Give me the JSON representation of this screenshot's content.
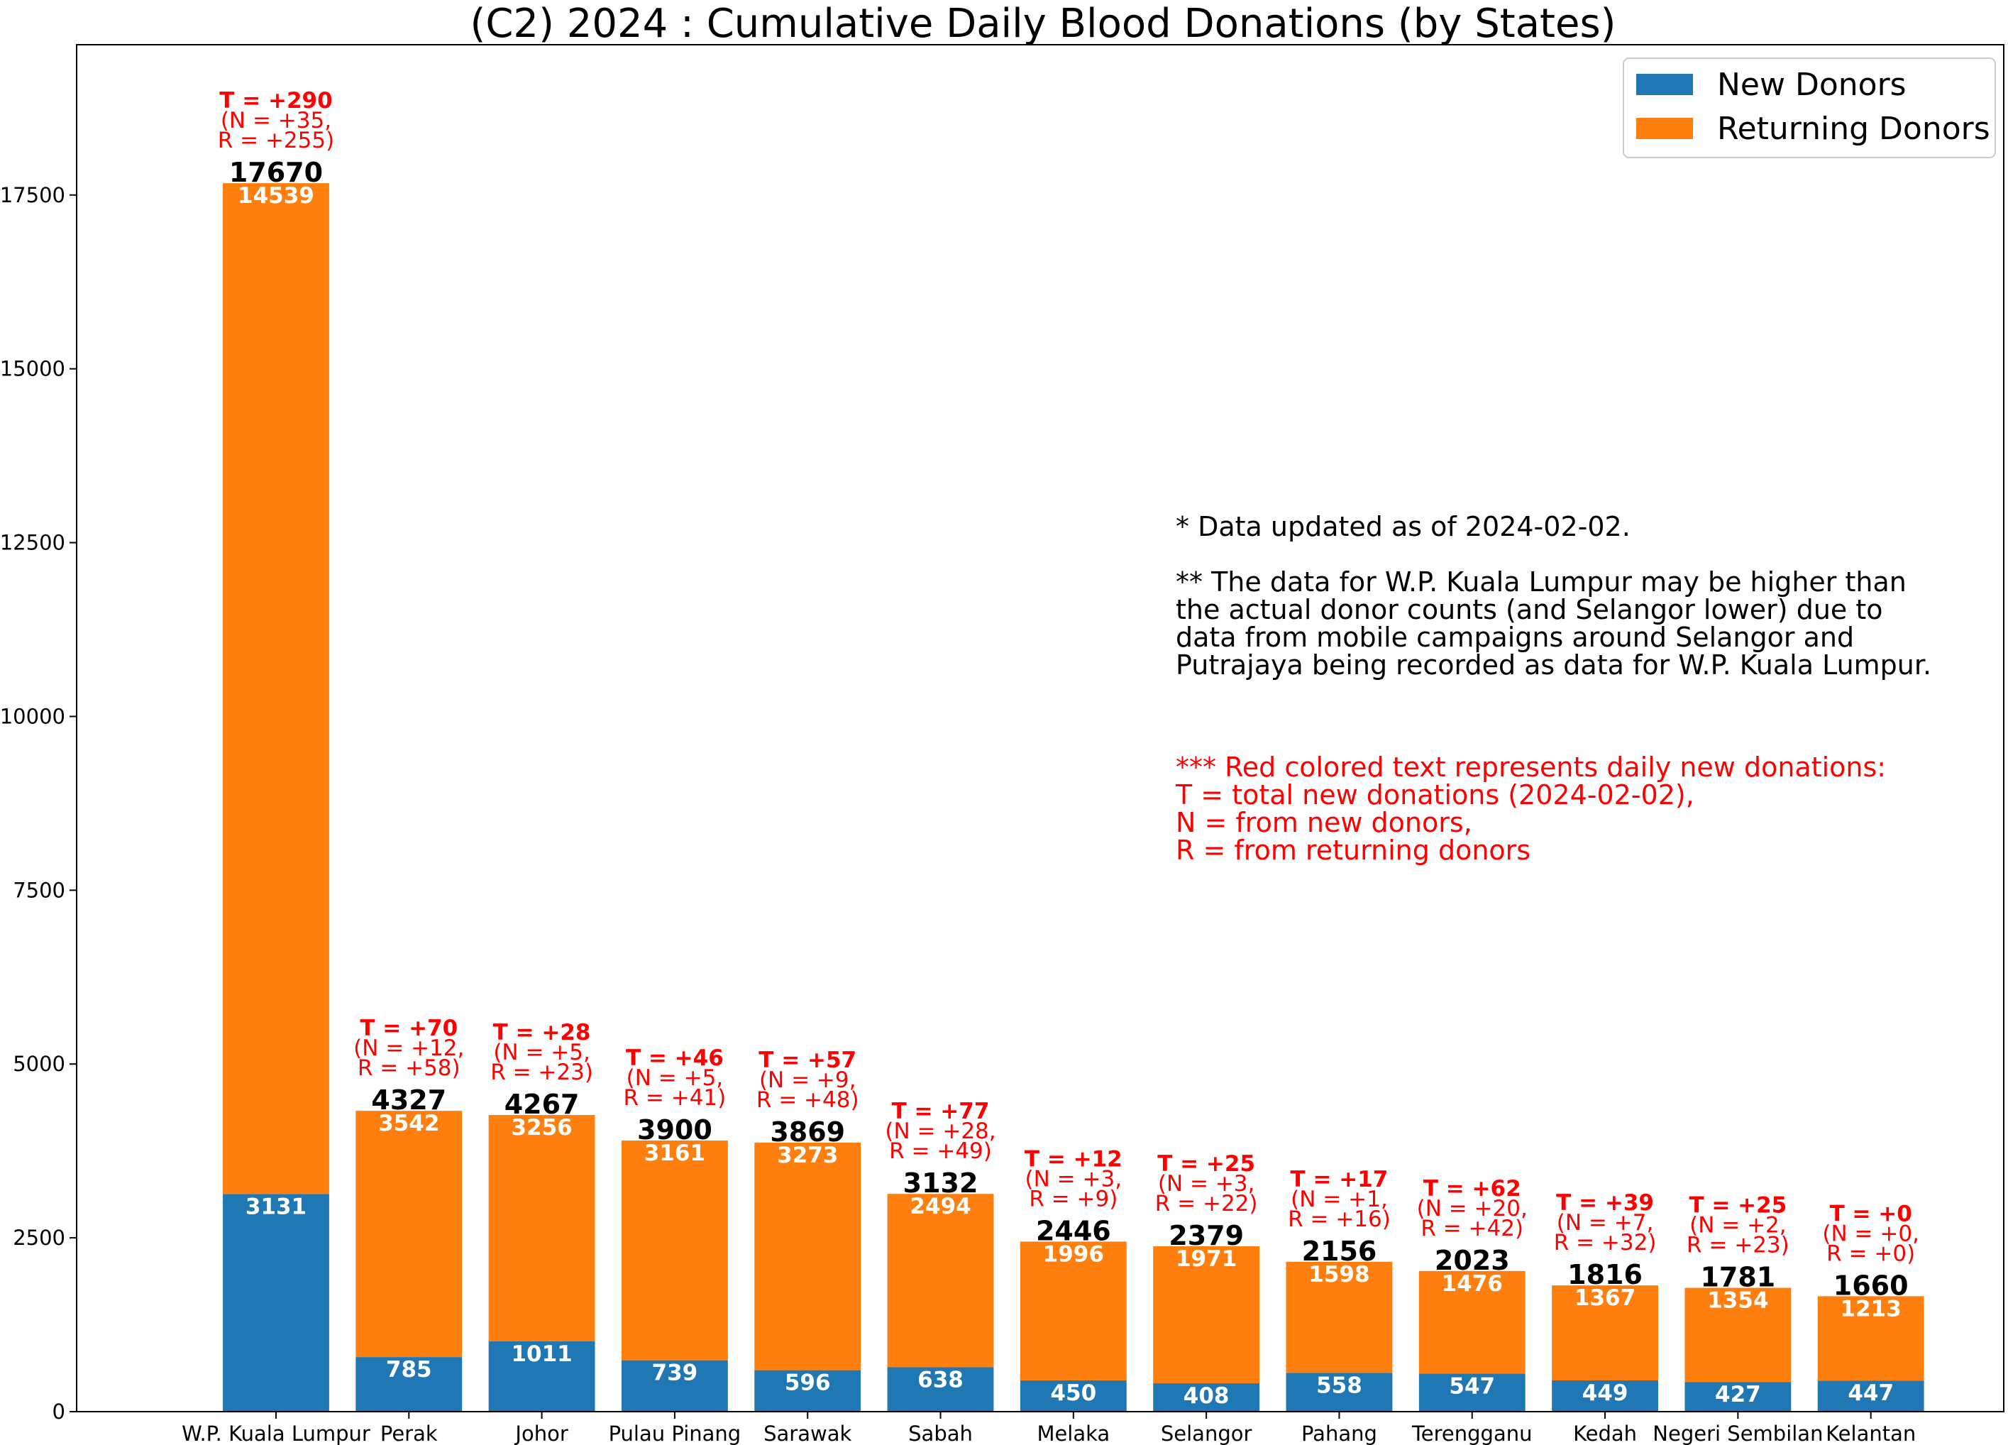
{
  "chart_data": {
    "type": "bar",
    "stacked": true,
    "title": "(C2) 2024 : Cumulative Daily Blood Donations (by States)",
    "categories": [
      "W.P. Kuala Lumpur",
      "Perak",
      "Johor",
      "Pulau Pinang",
      "Sarawak",
      "Sabah",
      "Melaka",
      "Selangor",
      "Pahang",
      "Terengganu",
      "Kedah",
      "Negeri Sembilan",
      "Kelantan"
    ],
    "series": [
      {
        "name": "New Donors",
        "color": "#1f77b4",
        "values": [
          3131,
          785,
          1011,
          739,
          596,
          638,
          450,
          408,
          558,
          547,
          449,
          427,
          447
        ]
      },
      {
        "name": "Returning Donors",
        "color": "#ff7f0e",
        "values": [
          14539,
          3542,
          3256,
          3161,
          3273,
          2494,
          1996,
          1971,
          1598,
          1476,
          1367,
          1354,
          1213
        ]
      }
    ],
    "totals": [
      17670,
      4327,
      4267,
      3900,
      3869,
      3132,
      2446,
      2379,
      2156,
      2023,
      1816,
      1781,
      1660
    ],
    "daily": [
      {
        "t": "T = +290",
        "n": "(N = +35,",
        "r": "R = +255)"
      },
      {
        "t": "T = +70",
        "n": "(N = +12,",
        "r": "R = +58)"
      },
      {
        "t": "T = +28",
        "n": "(N = +5,",
        "r": "R = +23)"
      },
      {
        "t": "T = +46",
        "n": "(N = +5,",
        "r": "R = +41)"
      },
      {
        "t": "T = +57",
        "n": "(N = +9,",
        "r": "R = +48)"
      },
      {
        "t": "T = +77",
        "n": "(N = +28,",
        "r": "R = +49)"
      },
      {
        "t": "T = +12",
        "n": "(N = +3,",
        "r": "R = +9)"
      },
      {
        "t": "T = +25",
        "n": "(N = +3,",
        "r": "R = +22)"
      },
      {
        "t": "T = +17",
        "n": "(N = +1,",
        "r": "R = +16)"
      },
      {
        "t": "T = +62",
        "n": "(N = +20,",
        "r": "R = +42)"
      },
      {
        "t": "T = +39",
        "n": "(N = +7,",
        "r": "R = +32)"
      },
      {
        "t": "T = +25",
        "n": "(N = +2,",
        "r": "R = +23)"
      },
      {
        "t": "T = +0",
        "n": "(N = +0,",
        "r": "R = +0)"
      }
    ],
    "yticks": [
      "0",
      "2500",
      "5000",
      "7500",
      "10000",
      "12500",
      "15000",
      "17500"
    ],
    "ylim": [
      0,
      19662
    ],
    "xlabel": "",
    "ylabel": "",
    "grid": false,
    "legend_position": "top-right"
  },
  "notes": {
    "line1": "* Data updated as of 2024-02-02.",
    "para2": [
      "** The data for W.P. Kuala Lumpur may be higher than",
      "the actual donor counts (and Selangor lower) due to",
      "data from mobile campaigns around Selangor and",
      "Putrajaya being recorded as data for W.P. Kuala Lumpur."
    ],
    "para3": [
      "*** Red colored text represents daily new donations:",
      "T = total new donations (2024-02-02),",
      "N = from new donors,",
      "R = from returning donors"
    ]
  }
}
